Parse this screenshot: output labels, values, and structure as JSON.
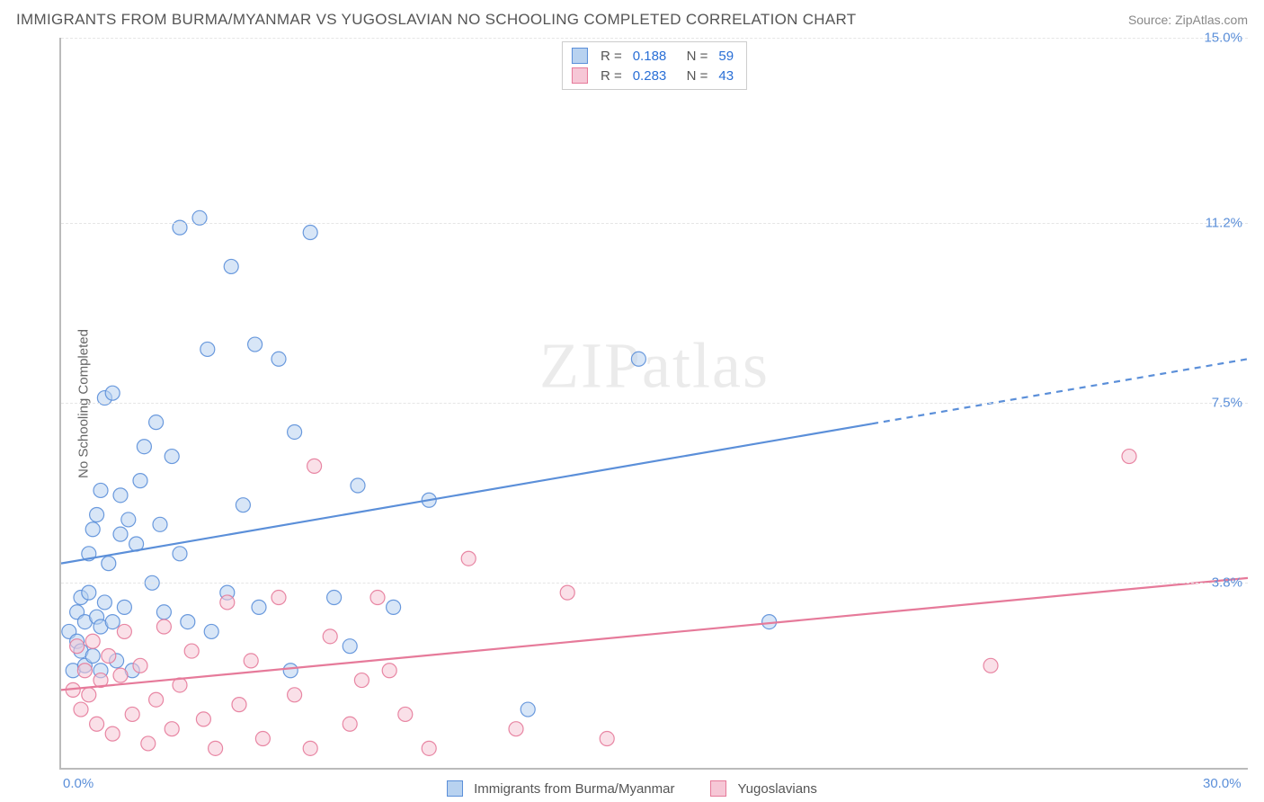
{
  "title": "IMMIGRANTS FROM BURMA/MYANMAR VS YUGOSLAVIAN NO SCHOOLING COMPLETED CORRELATION CHART",
  "source": "Source: ZipAtlas.com",
  "ylabel": "No Schooling Completed",
  "watermark": "ZIPatlas",
  "chart": {
    "type": "scatter",
    "background_color": "#ffffff",
    "grid_color": "#e5e5e5",
    "axis_color": "#bbbbbb",
    "tick_color_blue": "#5b8fd9",
    "xlim": [
      0,
      30
    ],
    "ylim": [
      0,
      15
    ],
    "yticks": [
      {
        "v": 3.8,
        "label": "3.8%"
      },
      {
        "v": 7.5,
        "label": "7.5%"
      },
      {
        "v": 11.2,
        "label": "11.2%"
      },
      {
        "v": 15.0,
        "label": "15.0%"
      }
    ],
    "xticks": [
      {
        "v": 0,
        "label": "0.0%"
      },
      {
        "v": 30,
        "label": "30.0%"
      }
    ],
    "marker_radius": 8,
    "marker_opacity": 0.55,
    "marker_stroke_opacity": 0.9,
    "line_width": 2.2,
    "series": [
      {
        "name": "Immigrants from Burma/Myanmar",
        "color": "#5b8fd9",
        "fill": "#b8d2f0",
        "R": "0.188",
        "N": "59",
        "trend": {
          "x1": 0,
          "y1": 4.2,
          "x2": 30,
          "y2": 8.4,
          "dash_from_x": 20.5
        },
        "points": [
          [
            0.2,
            2.8
          ],
          [
            0.3,
            2.0
          ],
          [
            0.4,
            2.6
          ],
          [
            0.4,
            3.2
          ],
          [
            0.5,
            2.4
          ],
          [
            0.5,
            3.5
          ],
          [
            0.6,
            2.1
          ],
          [
            0.6,
            3.0
          ],
          [
            0.7,
            3.6
          ],
          [
            0.7,
            4.4
          ],
          [
            0.8,
            2.3
          ],
          [
            0.8,
            4.9
          ],
          [
            0.9,
            3.1
          ],
          [
            0.9,
            5.2
          ],
          [
            1.0,
            2.9
          ],
          [
            1.0,
            5.7
          ],
          [
            1.1,
            3.4
          ],
          [
            1.1,
            7.6
          ],
          [
            1.2,
            4.2
          ],
          [
            1.3,
            3.0
          ],
          [
            1.3,
            7.7
          ],
          [
            1.4,
            2.2
          ],
          [
            1.5,
            4.8
          ],
          [
            1.5,
            5.6
          ],
          [
            1.6,
            3.3
          ],
          [
            1.7,
            5.1
          ],
          [
            1.8,
            2.0
          ],
          [
            1.9,
            4.6
          ],
          [
            2.0,
            5.9
          ],
          [
            2.1,
            6.6
          ],
          [
            2.3,
            3.8
          ],
          [
            2.4,
            7.1
          ],
          [
            2.5,
            5.0
          ],
          [
            2.6,
            3.2
          ],
          [
            2.8,
            6.4
          ],
          [
            3.0,
            4.4
          ],
          [
            3.0,
            11.1
          ],
          [
            3.2,
            3.0
          ],
          [
            3.5,
            11.3
          ],
          [
            3.7,
            8.6
          ],
          [
            3.8,
            2.8
          ],
          [
            4.2,
            3.6
          ],
          [
            4.3,
            10.3
          ],
          [
            4.6,
            5.4
          ],
          [
            4.9,
            8.7
          ],
          [
            5.0,
            3.3
          ],
          [
            5.5,
            8.4
          ],
          [
            5.8,
            2.0
          ],
          [
            5.9,
            6.9
          ],
          [
            6.3,
            11.0
          ],
          [
            6.9,
            3.5
          ],
          [
            7.3,
            2.5
          ],
          [
            7.5,
            5.8
          ],
          [
            8.4,
            3.3
          ],
          [
            9.3,
            5.5
          ],
          [
            11.8,
            1.2
          ],
          [
            14.6,
            8.4
          ],
          [
            17.9,
            3.0
          ],
          [
            1.0,
            2.0
          ]
        ]
      },
      {
        "name": "Yugoslavians",
        "color": "#e67a9a",
        "fill": "#f6c7d6",
        "R": "0.283",
        "N": "43",
        "trend": {
          "x1": 0,
          "y1": 1.6,
          "x2": 30,
          "y2": 3.9,
          "dash_from_x": 30
        },
        "points": [
          [
            0.3,
            1.6
          ],
          [
            0.4,
            2.5
          ],
          [
            0.5,
            1.2
          ],
          [
            0.6,
            2.0
          ],
          [
            0.7,
            1.5
          ],
          [
            0.8,
            2.6
          ],
          [
            0.9,
            0.9
          ],
          [
            1.0,
            1.8
          ],
          [
            1.2,
            2.3
          ],
          [
            1.3,
            0.7
          ],
          [
            1.5,
            1.9
          ],
          [
            1.6,
            2.8
          ],
          [
            1.8,
            1.1
          ],
          [
            2.0,
            2.1
          ],
          [
            2.2,
            0.5
          ],
          [
            2.4,
            1.4
          ],
          [
            2.6,
            2.9
          ],
          [
            2.8,
            0.8
          ],
          [
            3.0,
            1.7
          ],
          [
            3.3,
            2.4
          ],
          [
            3.6,
            1.0
          ],
          [
            3.9,
            0.4
          ],
          [
            4.2,
            3.4
          ],
          [
            4.5,
            1.3
          ],
          [
            4.8,
            2.2
          ],
          [
            5.1,
            0.6
          ],
          [
            5.5,
            3.5
          ],
          [
            5.9,
            1.5
          ],
          [
            6.3,
            0.4
          ],
          [
            6.4,
            6.2
          ],
          [
            6.8,
            2.7
          ],
          [
            7.3,
            0.9
          ],
          [
            7.6,
            1.8
          ],
          [
            8.0,
            3.5
          ],
          [
            8.3,
            2.0
          ],
          [
            8.7,
            1.1
          ],
          [
            9.3,
            0.4
          ],
          [
            10.3,
            4.3
          ],
          [
            11.5,
            0.8
          ],
          [
            12.8,
            3.6
          ],
          [
            13.8,
            0.6
          ],
          [
            23.5,
            2.1
          ],
          [
            27.0,
            6.4
          ]
        ]
      }
    ]
  },
  "legend_bottom": [
    {
      "label": "Immigrants from Burma/Myanmar",
      "fill": "#b8d2f0",
      "stroke": "#5b8fd9"
    },
    {
      "label": "Yugoslavians",
      "fill": "#f6c7d6",
      "stroke": "#e67a9a"
    }
  ]
}
